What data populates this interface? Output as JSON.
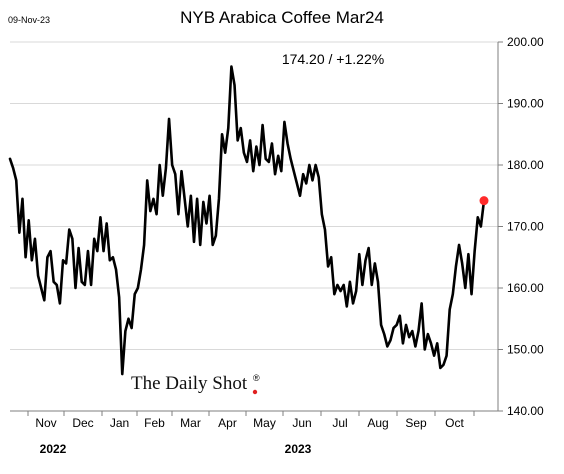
{
  "chart_data": {
    "type": "line",
    "date_label": "09-Nov-23",
    "title": "NYB Arabica Coffee Mar24",
    "annotation": "174.20  /  +1.22%",
    "brand": "The Daily Shot",
    "brand_mark": "®",
    "ylim": [
      140,
      200
    ],
    "y_ticks": [
      140,
      150,
      160,
      170,
      180,
      190,
      200
    ],
    "y_tick_labels": [
      "140.00",
      "150.00",
      "160.00",
      "170.00",
      "180.00",
      "190.00",
      "200.00"
    ],
    "month_ticks": [
      "Nov",
      "Dec",
      "Jan",
      "Feb",
      "Mar",
      "Apr",
      "May",
      "Jun",
      "Jul",
      "Aug",
      "Sep",
      "Oct"
    ],
    "year_labels": [
      "2022",
      "2023"
    ],
    "grid": true,
    "last_point_color": "#ff2a2a",
    "line_color": "#000000",
    "series": [
      {
        "values": [
          181.0,
          179.5,
          177.5,
          169.0,
          174.5,
          165.0,
          171.0,
          164.5,
          168.0,
          162.0,
          160.0,
          158.0,
          165.0,
          166.0,
          161.0,
          160.5,
          157.5,
          164.5,
          164.0,
          169.5,
          168.0,
          160.0,
          166.5,
          161.0,
          160.5,
          166.0,
          160.5,
          168.0,
          166.0,
          171.5,
          166.0,
          170.5,
          164.5,
          165.0,
          163.0,
          158.5,
          146.0,
          153.0,
          155.0,
          153.5,
          159.0,
          160.0,
          163.0,
          167.0,
          177.5,
          172.5,
          174.5,
          172.0,
          180.0,
          175.0,
          179.5,
          187.5,
          180.0,
          178.5,
          172.0,
          179.0,
          174.5,
          170.0,
          175.0,
          167.5,
          174.5,
          167.0,
          174.0,
          170.5,
          175.0,
          167.0,
          168.5,
          174.5,
          185.0,
          182.0,
          186.0,
          196.0,
          193.0,
          184.0,
          186.0,
          182.0,
          180.5,
          184.0,
          179.0,
          183.0,
          180.0,
          186.5,
          181.0,
          180.5,
          183.5,
          178.5,
          181.5,
          179.0,
          187.0,
          183.5,
          181.0,
          179.0,
          177.0,
          175.0,
          178.5,
          177.0,
          180.0,
          177.5,
          180.0,
          178.0,
          172.0,
          169.5,
          163.5,
          165.0,
          159.0,
          160.5,
          159.5,
          160.5,
          157.0,
          161.0,
          157.5,
          159.5,
          165.5,
          160.5,
          164.5,
          166.5,
          160.5,
          164.0,
          161.0,
          154.0,
          152.5,
          150.5,
          151.5,
          153.5,
          154.0,
          155.5,
          151.0,
          154.0,
          152.0,
          153.0,
          150.5,
          153.0,
          157.5,
          150.0,
          152.5,
          151.0,
          149.0,
          151.0,
          147.0,
          147.5,
          149.0,
          156.5,
          159.0,
          163.5,
          167.0,
          164.0,
          160.0,
          165.5,
          159.0,
          166.0,
          171.5,
          170.0,
          174.2
        ]
      }
    ]
  }
}
